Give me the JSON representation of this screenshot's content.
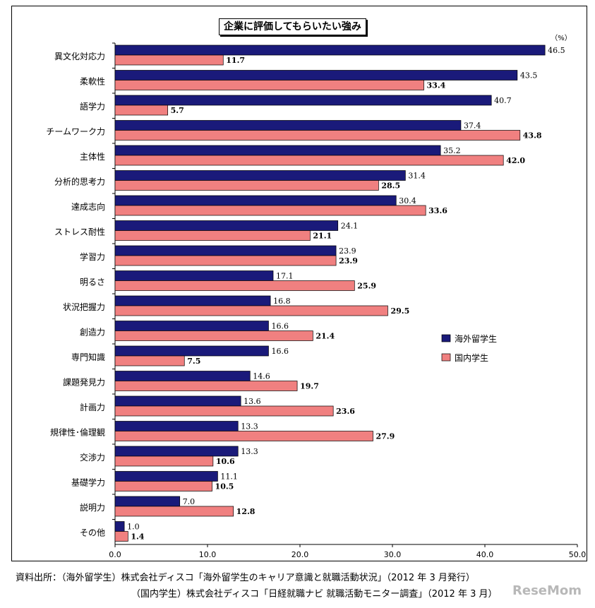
{
  "title": "企業に評価してもらいたい強み",
  "chart_data": {
    "type": "bar",
    "orientation": "horizontal",
    "unit": "（%）",
    "categories": [
      "異文化対応力",
      "柔軟性",
      "語学力",
      "チームワーク力",
      "主体性",
      "分析的思考力",
      "達成志向",
      "ストレス耐性",
      "学習力",
      "明るさ",
      "状況把握力",
      "創造力",
      "専門知識",
      "課題発見力",
      "計画力",
      "規律性･倫理観",
      "交渉力",
      "基礎学力",
      "説明力",
      "その他"
    ],
    "series": [
      {
        "name": "海外留学生",
        "color": "#1a1a7a",
        "values": [
          46.5,
          43.5,
          40.7,
          37.4,
          35.2,
          31.4,
          30.4,
          24.1,
          23.9,
          17.1,
          16.8,
          16.6,
          16.6,
          14.6,
          13.6,
          13.3,
          13.3,
          11.1,
          7.0,
          1.0
        ],
        "labels": [
          "46.5",
          "43.5",
          "40.7",
          "37.4",
          "35.2",
          "31.4",
          "30.4",
          "24.1",
          "23.9",
          "17.1",
          "16.8",
          "16.6",
          "16.6",
          "14.6",
          "13.6",
          "13.3",
          "13.3",
          "11.1",
          "7.0",
          "1.0"
        ]
      },
      {
        "name": "国内学生",
        "color": "#f08080",
        "values": [
          11.7,
          33.4,
          5.7,
          43.8,
          42.0,
          28.5,
          33.6,
          21.1,
          23.9,
          25.9,
          29.5,
          21.4,
          7.5,
          19.7,
          23.6,
          27.9,
          10.6,
          10.5,
          12.8,
          1.4
        ],
        "labels": [
          "11.7",
          "33.4",
          "5.7",
          "43.8",
          "42.0",
          "28.5",
          "33.6",
          "21.1",
          "23.9",
          "25.9",
          "29.5",
          "21.4",
          "7.5",
          "19.7",
          "23.6",
          "27.9",
          "10.6",
          "10.5",
          "12.8",
          "1.4"
        ]
      }
    ],
    "xlim": [
      0,
      50
    ],
    "xticks": [
      "0.0",
      "10.0",
      "20.0",
      "30.0",
      "40.0",
      "50.0"
    ],
    "grid": false,
    "legend_position": "right"
  },
  "source": {
    "line1": "資料出所：（海外留学生）株式会社ディスコ「海外留学生のキャリア意識と就職活動状況」（2012 年 3 月発行）",
    "line2": "（国内学生）株式会社ディスコ「日経就職ナビ 就職活動モニター調査」（2012 年 3 月）"
  },
  "watermark": "ReseMom"
}
